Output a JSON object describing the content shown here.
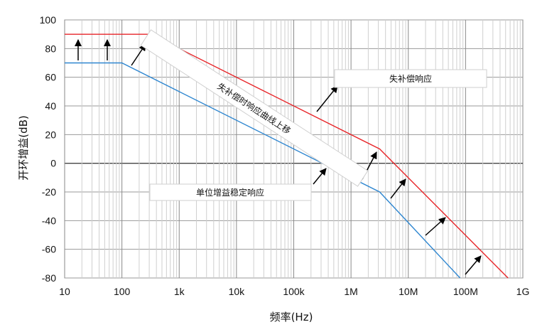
{
  "chart_data": {
    "type": "line",
    "title": "",
    "xlabel": "频率(Hz)",
    "ylabel": "开环增益(dB)",
    "xscale": "log",
    "xlim": [
      10,
      1000000000
    ],
    "ylim": [
      -80,
      100
    ],
    "grid": true,
    "x_ticks": [
      {
        "value": 10,
        "label": "10"
      },
      {
        "value": 100,
        "label": "100"
      },
      {
        "value": 1000,
        "label": "1k"
      },
      {
        "value": 10000,
        "label": "10k"
      },
      {
        "value": 100000,
        "label": "100k"
      },
      {
        "value": 1000000,
        "label": "1M"
      },
      {
        "value": 10000000,
        "label": "10M"
      },
      {
        "value": 100000000,
        "label": "100M"
      },
      {
        "value": 1000000000,
        "label": "1G"
      }
    ],
    "y_ticks": [
      100,
      80,
      60,
      40,
      20,
      0,
      -20,
      -40,
      -60,
      -80
    ],
    "series": [
      {
        "color": "#e8262a",
        "points": [
          [
            10,
            90
          ],
          [
            316,
            90
          ],
          [
            3160000,
            10
          ],
          [
            550000000,
            -80
          ]
        ]
      },
      {
        "color": "#2e86d0",
        "points": [
          [
            10,
            70
          ],
          [
            100,
            70
          ],
          [
            3160000,
            -20
          ],
          [
            80000000,
            -80
          ]
        ]
      }
    ],
    "annotations": [
      {
        "text": "失补偿响应"
      },
      {
        "text": "失补偿时响应曲线上移"
      },
      {
        "text": "单位增益稳定响应"
      }
    ]
  }
}
